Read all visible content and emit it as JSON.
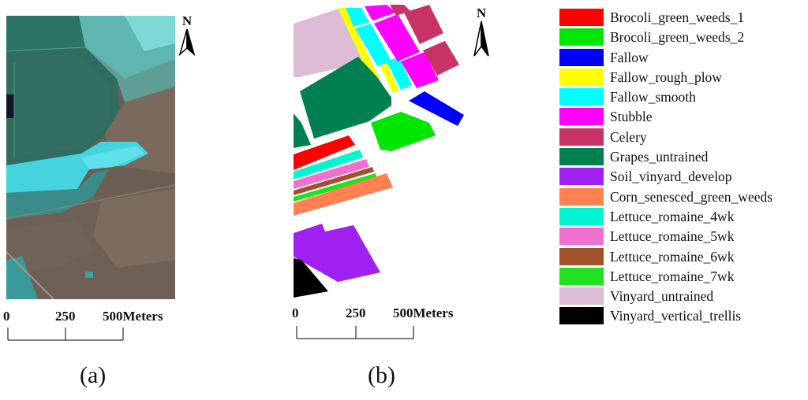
{
  "panel_a": {
    "caption": "(a)",
    "north": "N",
    "scale": {
      "ticks": [
        "0",
        "250",
        "500Meters"
      ]
    }
  },
  "panel_b": {
    "caption": "(b)",
    "north": "N",
    "scale": {
      "ticks": [
        "0",
        "250",
        "500Meters"
      ]
    }
  },
  "legend": [
    {
      "label": "Brocoli_green_weeds_1",
      "color": "#ff0000"
    },
    {
      "label": "Brocoli_green_weeds_2",
      "color": "#00e600"
    },
    {
      "label": "Fallow",
      "color": "#0000ff"
    },
    {
      "label": "Fallow_rough_plow",
      "color": "#ffff00"
    },
    {
      "label": "Fallow_smooth",
      "color": "#00ffff"
    },
    {
      "label": "Stubble",
      "color": "#ff00ff"
    },
    {
      "label": "Celery",
      "color": "#c83264"
    },
    {
      "label": "Grapes_untrained",
      "color": "#008050"
    },
    {
      "label": "Soil_vinyard_develop",
      "color": "#a020f0"
    },
    {
      "label": "Corn_senesced_green_weeds",
      "color": "#ff8050"
    },
    {
      "label": "Lettuce_romaine_4wk",
      "color": "#00f5d0"
    },
    {
      "label": "Lettuce_romaine_5wk",
      "color": "#f070d0"
    },
    {
      "label": "Lettuce_romaine_6wk",
      "color": "#a0522d"
    },
    {
      "label": "Lettuce_romaine_7wk",
      "color": "#20e020"
    },
    {
      "label": "Vinyard_untrained",
      "color": "#dcbcd4"
    },
    {
      "label": "Vinyard_vertical_trellis",
      "color": "#000000"
    }
  ]
}
